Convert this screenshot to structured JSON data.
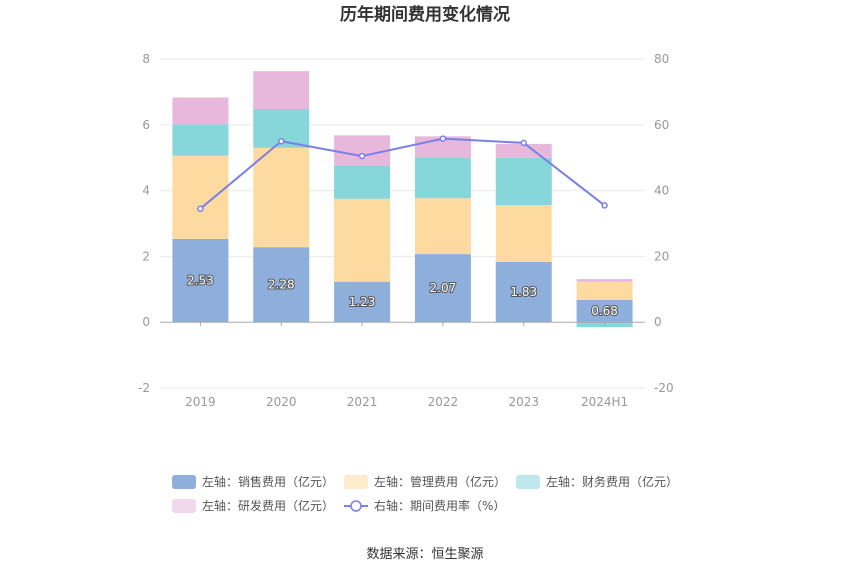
{
  "chart_data": {
    "type": "bar",
    "title": "历年期间费用变化情况",
    "categories": [
      "2019",
      "2020",
      "2021",
      "2022",
      "2023",
      "2024H1"
    ],
    "left_axis": {
      "ylim": [
        -2,
        8
      ],
      "ticks": [
        "-2",
        "0",
        "2",
        "4",
        "6",
        "8"
      ]
    },
    "right_axis": {
      "ylim": [
        -20,
        80
      ],
      "ticks": [
        "-20",
        "0",
        "20",
        "40",
        "60",
        "80"
      ]
    },
    "series": [
      {
        "name": "左轴：销售费用（亿元）",
        "axis": "left",
        "kind": "bar",
        "color": "#8eaedb",
        "values": [
          2.53,
          2.28,
          1.23,
          2.07,
          1.83,
          0.68
        ],
        "labels": [
          "2.53",
          "2.28",
          "1.23",
          "2.07",
          "1.83",
          "0.68"
        ]
      },
      {
        "name": "左轴：管理费用（亿元）",
        "axis": "left",
        "kind": "bar",
        "color": "#fddba0",
        "values": [
          2.53,
          3.02,
          2.52,
          1.7,
          1.73,
          0.55
        ]
      },
      {
        "name": "左轴：财务费用（亿元）",
        "axis": "left",
        "kind": "bar",
        "color": "#86d6da",
        "values": [
          0.95,
          1.18,
          1.01,
          1.22,
          1.44,
          -0.15
        ]
      },
      {
        "name": "左轴：研发费用（亿元）",
        "axis": "left",
        "kind": "bar",
        "color": "#e8b8dc",
        "values": [
          0.82,
          1.15,
          0.92,
          0.66,
          0.42,
          0.08
        ]
      },
      {
        "name": "右轴：期间费用率（%）",
        "axis": "right",
        "kind": "line",
        "color": "#7b7fe8",
        "values": [
          34.5,
          55.0,
          50.5,
          55.8,
          54.5,
          35.5
        ]
      }
    ],
    "legend_placement": "bottom",
    "grid": true
  },
  "source_text": "数据来源：恒生聚源"
}
